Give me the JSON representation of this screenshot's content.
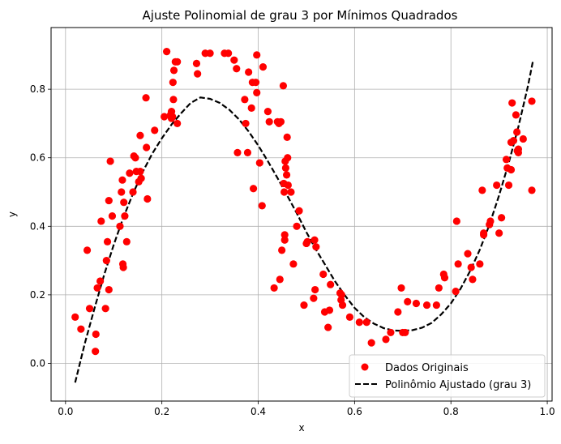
{
  "chart_data": {
    "type": "scatter",
    "title": "Ajuste Polinomial de grau 3 por Mínimos Quadrados",
    "xlabel": "x",
    "ylabel": "y",
    "xlim": [
      -0.03,
      1.01
    ],
    "ylim": [
      -0.11,
      0.98
    ],
    "x_ticks": [
      0.0,
      0.2,
      0.4,
      0.6,
      0.8,
      1.0
    ],
    "x_tick_labels": [
      "0.0",
      "0.2",
      "0.4",
      "0.6",
      "0.8",
      "1.0"
    ],
    "y_ticks": [
      0.0,
      0.2,
      0.4,
      0.6,
      0.8
    ],
    "y_tick_labels": [
      "0.0",
      "0.2",
      "0.4",
      "0.6",
      "0.8"
    ],
    "grid": true,
    "legend_position": "lower-right",
    "series": [
      {
        "name": "Dados Originais",
        "kind": "scatter",
        "color": "#ff0000",
        "points": [
          [
            0.02,
            0.135
          ],
          [
            0.032,
            0.1
          ],
          [
            0.045,
            0.33
          ],
          [
            0.05,
            0.16
          ],
          [
            0.062,
            0.035
          ],
          [
            0.063,
            0.085
          ],
          [
            0.066,
            0.22
          ],
          [
            0.072,
            0.24
          ],
          [
            0.074,
            0.415
          ],
          [
            0.083,
            0.16
          ],
          [
            0.085,
            0.3
          ],
          [
            0.087,
            0.355
          ],
          [
            0.09,
            0.475
          ],
          [
            0.09,
            0.215
          ],
          [
            0.093,
            0.59
          ],
          [
            0.097,
            0.43
          ],
          [
            0.113,
            0.4
          ],
          [
            0.116,
            0.5
          ],
          [
            0.118,
            0.535
          ],
          [
            0.119,
            0.29
          ],
          [
            0.12,
            0.28
          ],
          [
            0.121,
            0.47
          ],
          [
            0.123,
            0.43
          ],
          [
            0.127,
            0.355
          ],
          [
            0.133,
            0.555
          ],
          [
            0.14,
            0.5
          ],
          [
            0.142,
            0.605
          ],
          [
            0.145,
            0.6
          ],
          [
            0.147,
            0.56
          ],
          [
            0.152,
            0.53
          ],
          [
            0.155,
            0.56
          ],
          [
            0.157,
            0.54
          ],
          [
            0.155,
            0.665
          ],
          [
            0.167,
            0.775
          ],
          [
            0.168,
            0.63
          ],
          [
            0.17,
            0.48
          ],
          [
            0.185,
            0.68
          ],
          [
            0.205,
            0.72
          ],
          [
            0.21,
            0.91
          ],
          [
            0.218,
            0.725
          ],
          [
            0.22,
            0.715
          ],
          [
            0.222,
            0.72
          ],
          [
            0.22,
            0.735
          ],
          [
            0.223,
            0.82
          ],
          [
            0.224,
            0.77
          ],
          [
            0.225,
            0.855
          ],
          [
            0.228,
            0.88
          ],
          [
            0.232,
            0.88
          ],
          [
            0.232,
            0.7
          ],
          [
            0.272,
            0.875
          ],
          [
            0.274,
            0.845
          ],
          [
            0.29,
            0.905
          ],
          [
            0.3,
            0.905
          ],
          [
            0.33,
            0.905
          ],
          [
            0.338,
            0.905
          ],
          [
            0.35,
            0.885
          ],
          [
            0.355,
            0.86
          ],
          [
            0.357,
            0.615
          ],
          [
            0.372,
            0.77
          ],
          [
            0.374,
            0.7
          ],
          [
            0.378,
            0.615
          ],
          [
            0.38,
            0.85
          ],
          [
            0.386,
            0.745
          ],
          [
            0.388,
            0.82
          ],
          [
            0.39,
            0.51
          ],
          [
            0.395,
            0.82
          ],
          [
            0.397,
            0.9
          ],
          [
            0.397,
            0.79
          ],
          [
            0.403,
            0.585
          ],
          [
            0.408,
            0.46
          ],
          [
            0.41,
            0.865
          ],
          [
            0.42,
            0.735
          ],
          [
            0.423,
            0.705
          ],
          [
            0.433,
            0.22
          ],
          [
            0.44,
            0.705
          ],
          [
            0.443,
            0.7
          ],
          [
            0.445,
            0.245
          ],
          [
            0.447,
            0.705
          ],
          [
            0.449,
            0.33
          ],
          [
            0.452,
            0.81
          ],
          [
            0.453,
            0.525
          ],
          [
            0.454,
            0.5
          ],
          [
            0.455,
            0.375
          ],
          [
            0.455,
            0.36
          ],
          [
            0.456,
            0.59
          ],
          [
            0.457,
            0.57
          ],
          [
            0.459,
            0.55
          ],
          [
            0.46,
            0.66
          ],
          [
            0.461,
            0.6
          ],
          [
            0.462,
            0.52
          ],
          [
            0.468,
            0.5
          ],
          [
            0.473,
            0.29
          ],
          [
            0.48,
            0.4
          ],
          [
            0.485,
            0.445
          ],
          [
            0.495,
            0.17
          ],
          [
            0.5,
            0.35
          ],
          [
            0.502,
            0.355
          ],
          [
            0.515,
            0.19
          ],
          [
            0.517,
            0.36
          ],
          [
            0.518,
            0.215
          ],
          [
            0.52,
            0.34
          ],
          [
            0.535,
            0.26
          ],
          [
            0.538,
            0.15
          ],
          [
            0.545,
            0.105
          ],
          [
            0.548,
            0.155
          ],
          [
            0.55,
            0.23
          ],
          [
            0.57,
            0.205
          ],
          [
            0.572,
            0.185
          ],
          [
            0.573,
            0.2
          ],
          [
            0.575,
            0.17
          ],
          [
            0.59,
            0.135
          ],
          [
            0.61,
            0.12
          ],
          [
            0.625,
            0.12
          ],
          [
            0.635,
            0.06
          ],
          [
            0.665,
            0.07
          ],
          [
            0.675,
            0.09
          ],
          [
            0.69,
            0.15
          ],
          [
            0.697,
            0.22
          ],
          [
            0.7,
            0.09
          ],
          [
            0.705,
            0.09
          ],
          [
            0.71,
            0.18
          ],
          [
            0.728,
            0.175
          ],
          [
            0.75,
            0.17
          ],
          [
            0.77,
            0.17
          ],
          [
            0.775,
            0.22
          ],
          [
            0.785,
            0.26
          ],
          [
            0.787,
            0.25
          ],
          [
            0.81,
            0.21
          ],
          [
            0.815,
            0.29
          ],
          [
            0.812,
            0.415
          ],
          [
            0.835,
            0.32
          ],
          [
            0.842,
            0.28
          ],
          [
            0.845,
            0.245
          ],
          [
            0.86,
            0.29
          ],
          [
            0.865,
            0.505
          ],
          [
            0.868,
            0.38
          ],
          [
            0.868,
            0.375
          ],
          [
            0.88,
            0.405
          ],
          [
            0.882,
            0.415
          ],
          [
            0.895,
            0.52
          ],
          [
            0.9,
            0.38
          ],
          [
            0.905,
            0.425
          ],
          [
            0.915,
            0.595
          ],
          [
            0.917,
            0.57
          ],
          [
            0.92,
            0.52
          ],
          [
            0.925,
            0.645
          ],
          [
            0.925,
            0.565
          ],
          [
            0.927,
            0.76
          ],
          [
            0.93,
            0.65
          ],
          [
            0.935,
            0.725
          ],
          [
            0.937,
            0.675
          ],
          [
            0.938,
            0.62
          ],
          [
            0.94,
            0.615
          ],
          [
            0.94,
            0.625
          ],
          [
            0.95,
            0.655
          ],
          [
            0.968,
            0.505
          ],
          [
            0.968,
            0.765
          ]
        ]
      },
      {
        "name": "Polinômio Ajustado (grau 3)",
        "kind": "line",
        "color": "#000000",
        "line_style": "dashed",
        "x": [
          0.02,
          0.04,
          0.06,
          0.08,
          0.1,
          0.12,
          0.14,
          0.16,
          0.18,
          0.2,
          0.22,
          0.24,
          0.26,
          0.28,
          0.3,
          0.32,
          0.34,
          0.36,
          0.38,
          0.4,
          0.42,
          0.44,
          0.46,
          0.48,
          0.5,
          0.52,
          0.54,
          0.56,
          0.58,
          0.6,
          0.62,
          0.64,
          0.66,
          0.68,
          0.7,
          0.72,
          0.74,
          0.76,
          0.78,
          0.8,
          0.82,
          0.84,
          0.86,
          0.88,
          0.9,
          0.92,
          0.94,
          0.96,
          0.97
        ],
        "y": [
          -0.056,
          0.058,
          0.16,
          0.258,
          0.346,
          0.425,
          0.495,
          0.558,
          0.612,
          0.657,
          0.697,
          0.73,
          0.76,
          0.776,
          0.772,
          0.76,
          0.74,
          0.712,
          0.677,
          0.636,
          0.59,
          0.541,
          0.49,
          0.438,
          0.383,
          0.332,
          0.285,
          0.238,
          0.198,
          0.162,
          0.135,
          0.116,
          0.103,
          0.096,
          0.095,
          0.097,
          0.104,
          0.118,
          0.143,
          0.175,
          0.218,
          0.27,
          0.332,
          0.405,
          0.49,
          0.585,
          0.69,
          0.81,
          0.88
        ]
      }
    ]
  }
}
